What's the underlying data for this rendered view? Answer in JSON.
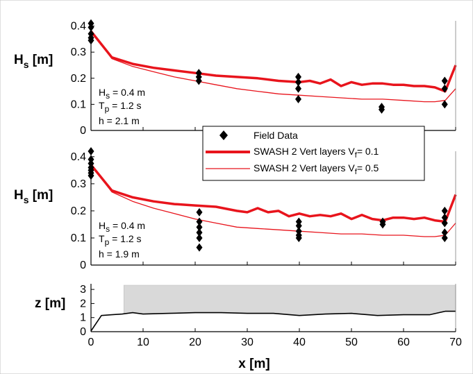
{
  "chart_data": [
    {
      "type": "line",
      "ylabel": "H",
      "ylabel_sub": "s",
      "ylabel_unit": " [m]",
      "xlim": [
        0,
        70
      ],
      "ylim": [
        0,
        0.42
      ],
      "yticks": [
        0,
        0.1,
        0.2,
        0.3,
        0.4
      ],
      "ytick_labels": [
        "0",
        "0.1",
        "0.2",
        "0.3",
        "0.4"
      ],
      "annotations": [
        {
          "main": "H",
          "sub": "s",
          "rest": " = 0.4 m"
        },
        {
          "main": "T",
          "sub": "p",
          "rest": " = 1.2 s"
        },
        {
          "main": "h = 2.1 m",
          "sub": "",
          "rest": ""
        }
      ],
      "series": [
        {
          "name": "Field Data",
          "style": "diamond-markers",
          "color": "#000000",
          "points": [
            [
              0,
              0.41
            ],
            [
              0,
              0.395
            ],
            [
              0,
              0.37
            ],
            [
              0,
              0.355
            ],
            [
              0,
              0.345
            ],
            [
              20.7,
              0.22
            ],
            [
              20.7,
              0.205
            ],
            [
              20.7,
              0.19
            ],
            [
              39.8,
              0.205
            ],
            [
              39.8,
              0.185
            ],
            [
              39.8,
              0.16
            ],
            [
              39.8,
              0.12
            ],
            [
              55.8,
              0.09
            ],
            [
              55.8,
              0.08
            ],
            [
              67.9,
              0.19
            ],
            [
              67.9,
              0.16
            ],
            [
              67.9,
              0.1
            ]
          ]
        },
        {
          "name": "SWASH 2 Vert layers V",
          "name_sub": "f",
          "name_rest": "= 0.1",
          "style": "thick-line",
          "color": "#e8141c",
          "x": [
            0,
            4,
            8,
            12,
            16,
            20,
            24,
            28,
            32,
            36,
            40,
            42,
            44,
            46,
            48,
            50,
            52,
            54,
            56,
            58,
            60,
            62,
            64,
            66,
            68,
            70
          ],
          "y": [
            0.38,
            0.28,
            0.255,
            0.24,
            0.23,
            0.22,
            0.21,
            0.205,
            0.2,
            0.19,
            0.185,
            0.19,
            0.18,
            0.195,
            0.17,
            0.185,
            0.175,
            0.18,
            0.18,
            0.175,
            0.175,
            0.17,
            0.17,
            0.165,
            0.15,
            0.25
          ]
        },
        {
          "name": "SWASH 2 Vert layers V",
          "name_sub": "f",
          "name_rest": "= 0.5",
          "style": "thin-line",
          "color": "#e8141c",
          "x": [
            0,
            4,
            8,
            12,
            16,
            20,
            24,
            28,
            32,
            36,
            40,
            44,
            48,
            52,
            56,
            60,
            64,
            66,
            68,
            70
          ],
          "y": [
            0.38,
            0.275,
            0.245,
            0.225,
            0.205,
            0.19,
            0.175,
            0.16,
            0.15,
            0.14,
            0.135,
            0.13,
            0.125,
            0.12,
            0.12,
            0.115,
            0.11,
            0.11,
            0.115,
            0.16
          ]
        }
      ],
      "legend": {
        "placement": "right",
        "entries": [
          {
            "main": "Field Data",
            "sub": "",
            "rest": ""
          },
          {
            "main": "SWASH 2 Vert layers V",
            "sub": "f",
            "rest": "= 0.1"
          },
          {
            "main": "SWASH 2 Vert layers V",
            "sub": "f",
            "rest": "= 0.5"
          }
        ]
      }
    },
    {
      "type": "line",
      "ylabel": "H",
      "ylabel_sub": "s",
      "ylabel_unit": " [m]",
      "xlim": [
        0,
        70
      ],
      "ylim": [
        0,
        0.42
      ],
      "yticks": [
        0,
        0.1,
        0.2,
        0.3,
        0.4
      ],
      "ytick_labels": [
        "0",
        "0.1",
        "0.2",
        "0.3",
        "0.4"
      ],
      "annotations": [
        {
          "main": "H",
          "sub": "s",
          "rest": " = 0.4 m"
        },
        {
          "main": "T",
          "sub": "p",
          "rest": " = 1.2 s"
        },
        {
          "main": "h = 1.9 m",
          "sub": "",
          "rest": ""
        }
      ],
      "series": [
        {
          "name": "Field Data",
          "style": "diamond-markers",
          "color": "#000000",
          "points": [
            [
              0,
              0.42
            ],
            [
              0,
              0.39
            ],
            [
              0,
              0.375
            ],
            [
              0,
              0.36
            ],
            [
              0,
              0.35
            ],
            [
              0,
              0.34
            ],
            [
              0,
              0.33
            ],
            [
              20.8,
              0.195
            ],
            [
              20.8,
              0.16
            ],
            [
              20.8,
              0.14
            ],
            [
              20.8,
              0.12
            ],
            [
              20.8,
              0.1
            ],
            [
              20.8,
              0.065
            ],
            [
              39.9,
              0.16
            ],
            [
              39.9,
              0.145
            ],
            [
              39.9,
              0.125
            ],
            [
              39.9,
              0.11
            ],
            [
              39.9,
              0.1
            ],
            [
              56,
              0.16
            ],
            [
              56,
              0.15
            ],
            [
              67.9,
              0.2
            ],
            [
              67.9,
              0.175
            ],
            [
              67.9,
              0.155
            ],
            [
              67.9,
              0.12
            ],
            [
              67.9,
              0.1
            ]
          ]
        },
        {
          "name": "SWASH 2 Vert layers V",
          "name_sub": "f",
          "name_rest": "= 0.1",
          "style": "thick-line",
          "color": "#e8141c",
          "x": [
            0,
            4,
            8,
            12,
            16,
            20,
            24,
            28,
            30,
            32,
            34,
            36,
            38,
            40,
            42,
            44,
            46,
            48,
            50,
            52,
            54,
            56,
            58,
            60,
            62,
            64,
            66,
            68,
            70
          ],
          "y": [
            0.37,
            0.275,
            0.25,
            0.235,
            0.225,
            0.22,
            0.215,
            0.2,
            0.195,
            0.21,
            0.195,
            0.2,
            0.18,
            0.19,
            0.18,
            0.185,
            0.18,
            0.19,
            0.17,
            0.185,
            0.17,
            0.165,
            0.175,
            0.175,
            0.17,
            0.175,
            0.165,
            0.16,
            0.26
          ]
        },
        {
          "name": "SWASH 2 Vert layers V",
          "name_sub": "f",
          "name_rest": "= 0.5",
          "style": "thin-line",
          "color": "#e8141c",
          "x": [
            0,
            4,
            8,
            12,
            16,
            20,
            24,
            28,
            32,
            36,
            40,
            44,
            48,
            52,
            56,
            60,
            64,
            66,
            68,
            70
          ],
          "y": [
            0.37,
            0.27,
            0.235,
            0.21,
            0.19,
            0.17,
            0.155,
            0.14,
            0.135,
            0.13,
            0.125,
            0.12,
            0.115,
            0.115,
            0.11,
            0.11,
            0.105,
            0.105,
            0.11,
            0.155
          ]
        }
      ]
    },
    {
      "type": "area",
      "ylabel": "z [m]",
      "xlabel": "x [m]",
      "xlim": [
        0,
        70
      ],
      "ylim": [
        0,
        3.4
      ],
      "yticks": [
        0,
        1,
        2,
        3
      ],
      "ytick_labels": [
        "0",
        "1",
        "2",
        "3"
      ],
      "xticks": [
        0,
        10,
        20,
        30,
        40,
        50,
        60,
        70
      ],
      "xtick_labels": [
        "0",
        "10",
        "20",
        "30",
        "40",
        "50",
        "60",
        "70"
      ],
      "series": [
        {
          "name": "bed",
          "style": "black-line",
          "color": "#000000",
          "x": [
            0,
            2,
            4,
            6,
            8,
            10,
            15,
            20,
            25,
            30,
            35,
            40,
            45,
            50,
            55,
            60,
            65,
            68,
            70
          ],
          "y": [
            0.05,
            1.15,
            1.2,
            1.25,
            1.35,
            1.25,
            1.3,
            1.35,
            1.35,
            1.3,
            1.3,
            1.15,
            1.25,
            1.3,
            1.15,
            1.2,
            1.2,
            1.45,
            1.45
          ]
        },
        {
          "name": "water",
          "style": "gray-fill",
          "color": "#d9d9d9",
          "x": [
            6.3,
            70
          ],
          "top": 3.3
        }
      ]
    }
  ]
}
